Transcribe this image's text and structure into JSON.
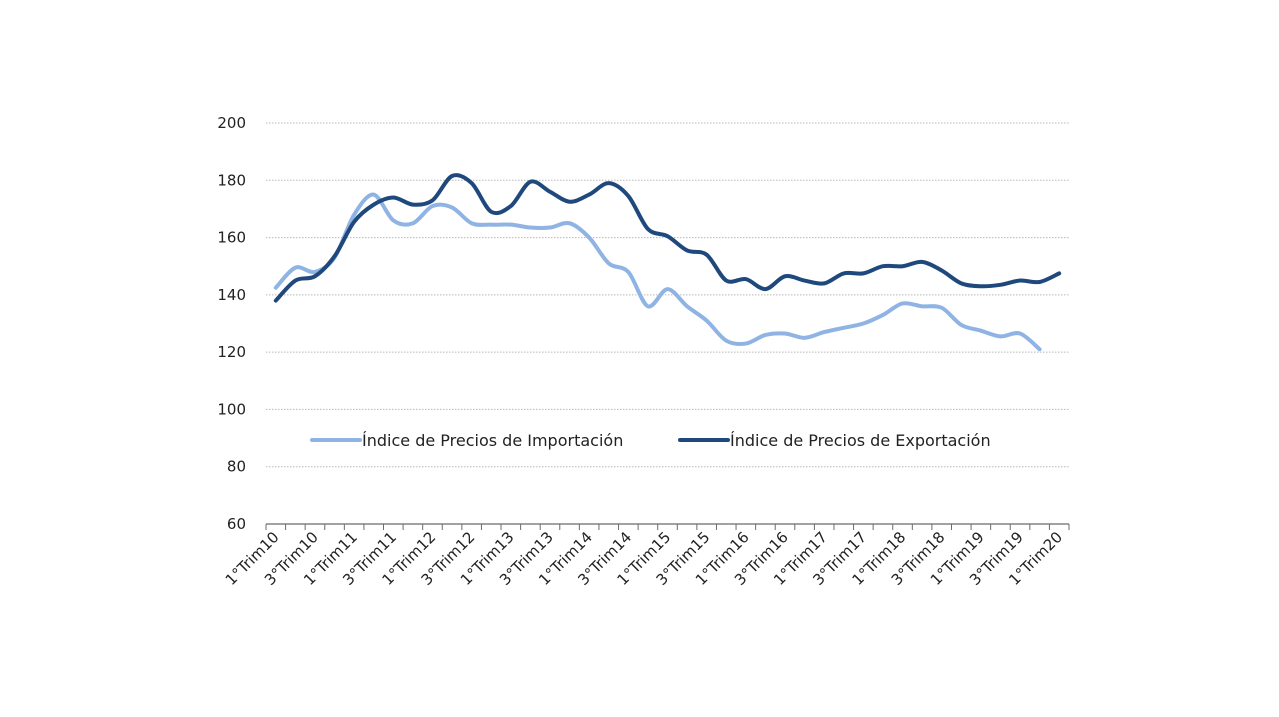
{
  "chart_data": {
    "type": "line",
    "title": "",
    "xlabel": "",
    "ylabel": "",
    "ylim": [
      60,
      200
    ],
    "yticks": [
      60,
      80,
      100,
      120,
      140,
      160,
      180,
      200
    ],
    "grid": true,
    "legend_position": "center",
    "x_tick_labels": [
      "1°Trim10",
      "3°Trim10",
      "1°Trim11",
      "3°Trim11",
      "1°Trim12",
      "3°Trim12",
      "1°Trim13",
      "3°Trim13",
      "1°Trim14",
      "3°Trim14",
      "1°Trim15",
      "3°Trim15",
      "1°Trim16",
      "3°Trim16",
      "1°Trim17",
      "3°Trim17",
      "1°Trim18",
      "3°Trim18",
      "1°Trim19",
      "3°Trim19",
      "1°Trim20"
    ],
    "series": [
      {
        "name": "Índice de Precios de Importación",
        "color": "#8fb4e3",
        "values": [
          142.5,
          149.5,
          148,
          153,
          168,
          175,
          166,
          165,
          171,
          170.5,
          165,
          164.5,
          164.5,
          163.5,
          163.5,
          165,
          160,
          151,
          148,
          136,
          142,
          136,
          131,
          124,
          123,
          126,
          126.5,
          125,
          127,
          128.5,
          130,
          133,
          137,
          136,
          135.5,
          129.5,
          127.5,
          125.5,
          126.5,
          121
        ]
      },
      {
        "name": "Índice de Precios de Exportación",
        "color": "#1f497d",
        "values": [
          138,
          145,
          146.5,
          153.5,
          165.5,
          171.5,
          174,
          171.5,
          173,
          181.5,
          179,
          169,
          171,
          179.5,
          176,
          172.5,
          175,
          179,
          174.5,
          163,
          160.5,
          155.5,
          154,
          145,
          145.5,
          142,
          146.5,
          145,
          144,
          147.5,
          147.5,
          150,
          150,
          151.5,
          148.5,
          144,
          143,
          143.5,
          145,
          144.5,
          147.5
        ]
      }
    ]
  }
}
